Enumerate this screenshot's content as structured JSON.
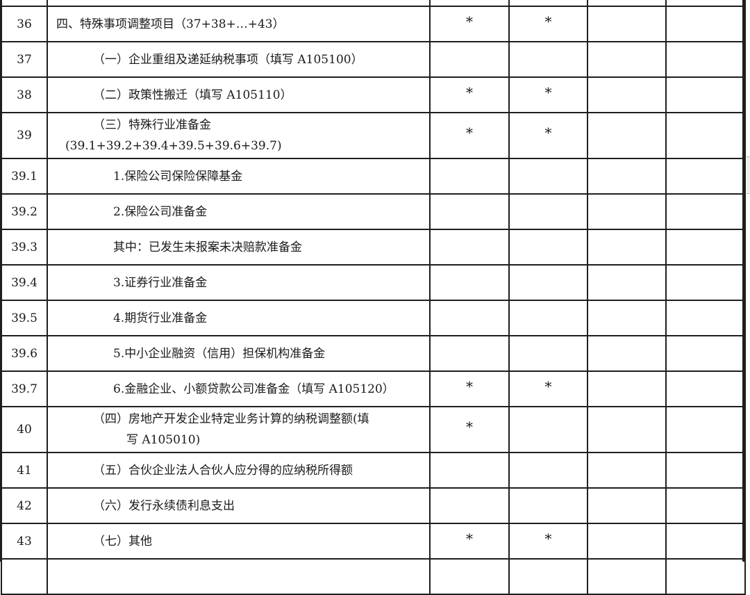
{
  "rows": [
    {
      "no": "36",
      "item": "四、特殊事项调整项目（37+38+…+43）",
      "c1": "*",
      "c2": "*"
    },
    {
      "no": "37",
      "item": "（一）企业重组及递延纳税事项（填写 A105100）",
      "c1": "",
      "c2": ""
    },
    {
      "no": "38",
      "item": "（二）政策性搬迁（填写 A105110）",
      "c1": "*",
      "c2": "*"
    },
    {
      "no": "39",
      "item": "（三）特殊行业准备金",
      "item2": "(39.1+39.2+39.4+39.5+39.6+39.7)",
      "c1": "*",
      "c2": "*"
    },
    {
      "no": "39.1",
      "item": "1.保险公司保险保障基金",
      "c1": "",
      "c2": ""
    },
    {
      "no": "39.2",
      "item": "2.保险公司准备金",
      "c1": "",
      "c2": ""
    },
    {
      "no": "39.3",
      "item": "其中：已发生未报案未决赔款准备金",
      "c1": "",
      "c2": ""
    },
    {
      "no": "39.4",
      "item": "3.证券行业准备金",
      "c1": "",
      "c2": ""
    },
    {
      "no": "39.5",
      "item": "4.期货行业准备金",
      "c1": "",
      "c2": ""
    },
    {
      "no": "39.6",
      "item": "5.中小企业融资（信用）担保机构准备金",
      "c1": "",
      "c2": ""
    },
    {
      "no": "39.7",
      "item": "6.金融企业、小额贷款公司准备金（填写 A105120）",
      "c1": "*",
      "c2": "*"
    },
    {
      "no": "40",
      "item": "（四）房地产开发企业特定业务计算的纳税调整额(填",
      "item2": "写 A105010)",
      "c1": "*",
      "c2": ""
    },
    {
      "no": "41",
      "item": "（五）合伙企业法人合伙人应分得的应纳税所得额",
      "c1": "",
      "c2": ""
    },
    {
      "no": "42",
      "item": "（六）发行永续债利息支出",
      "c1": "",
      "c2": ""
    },
    {
      "no": "43",
      "item": "（七）其他",
      "c1": "*",
      "c2": "*"
    }
  ]
}
